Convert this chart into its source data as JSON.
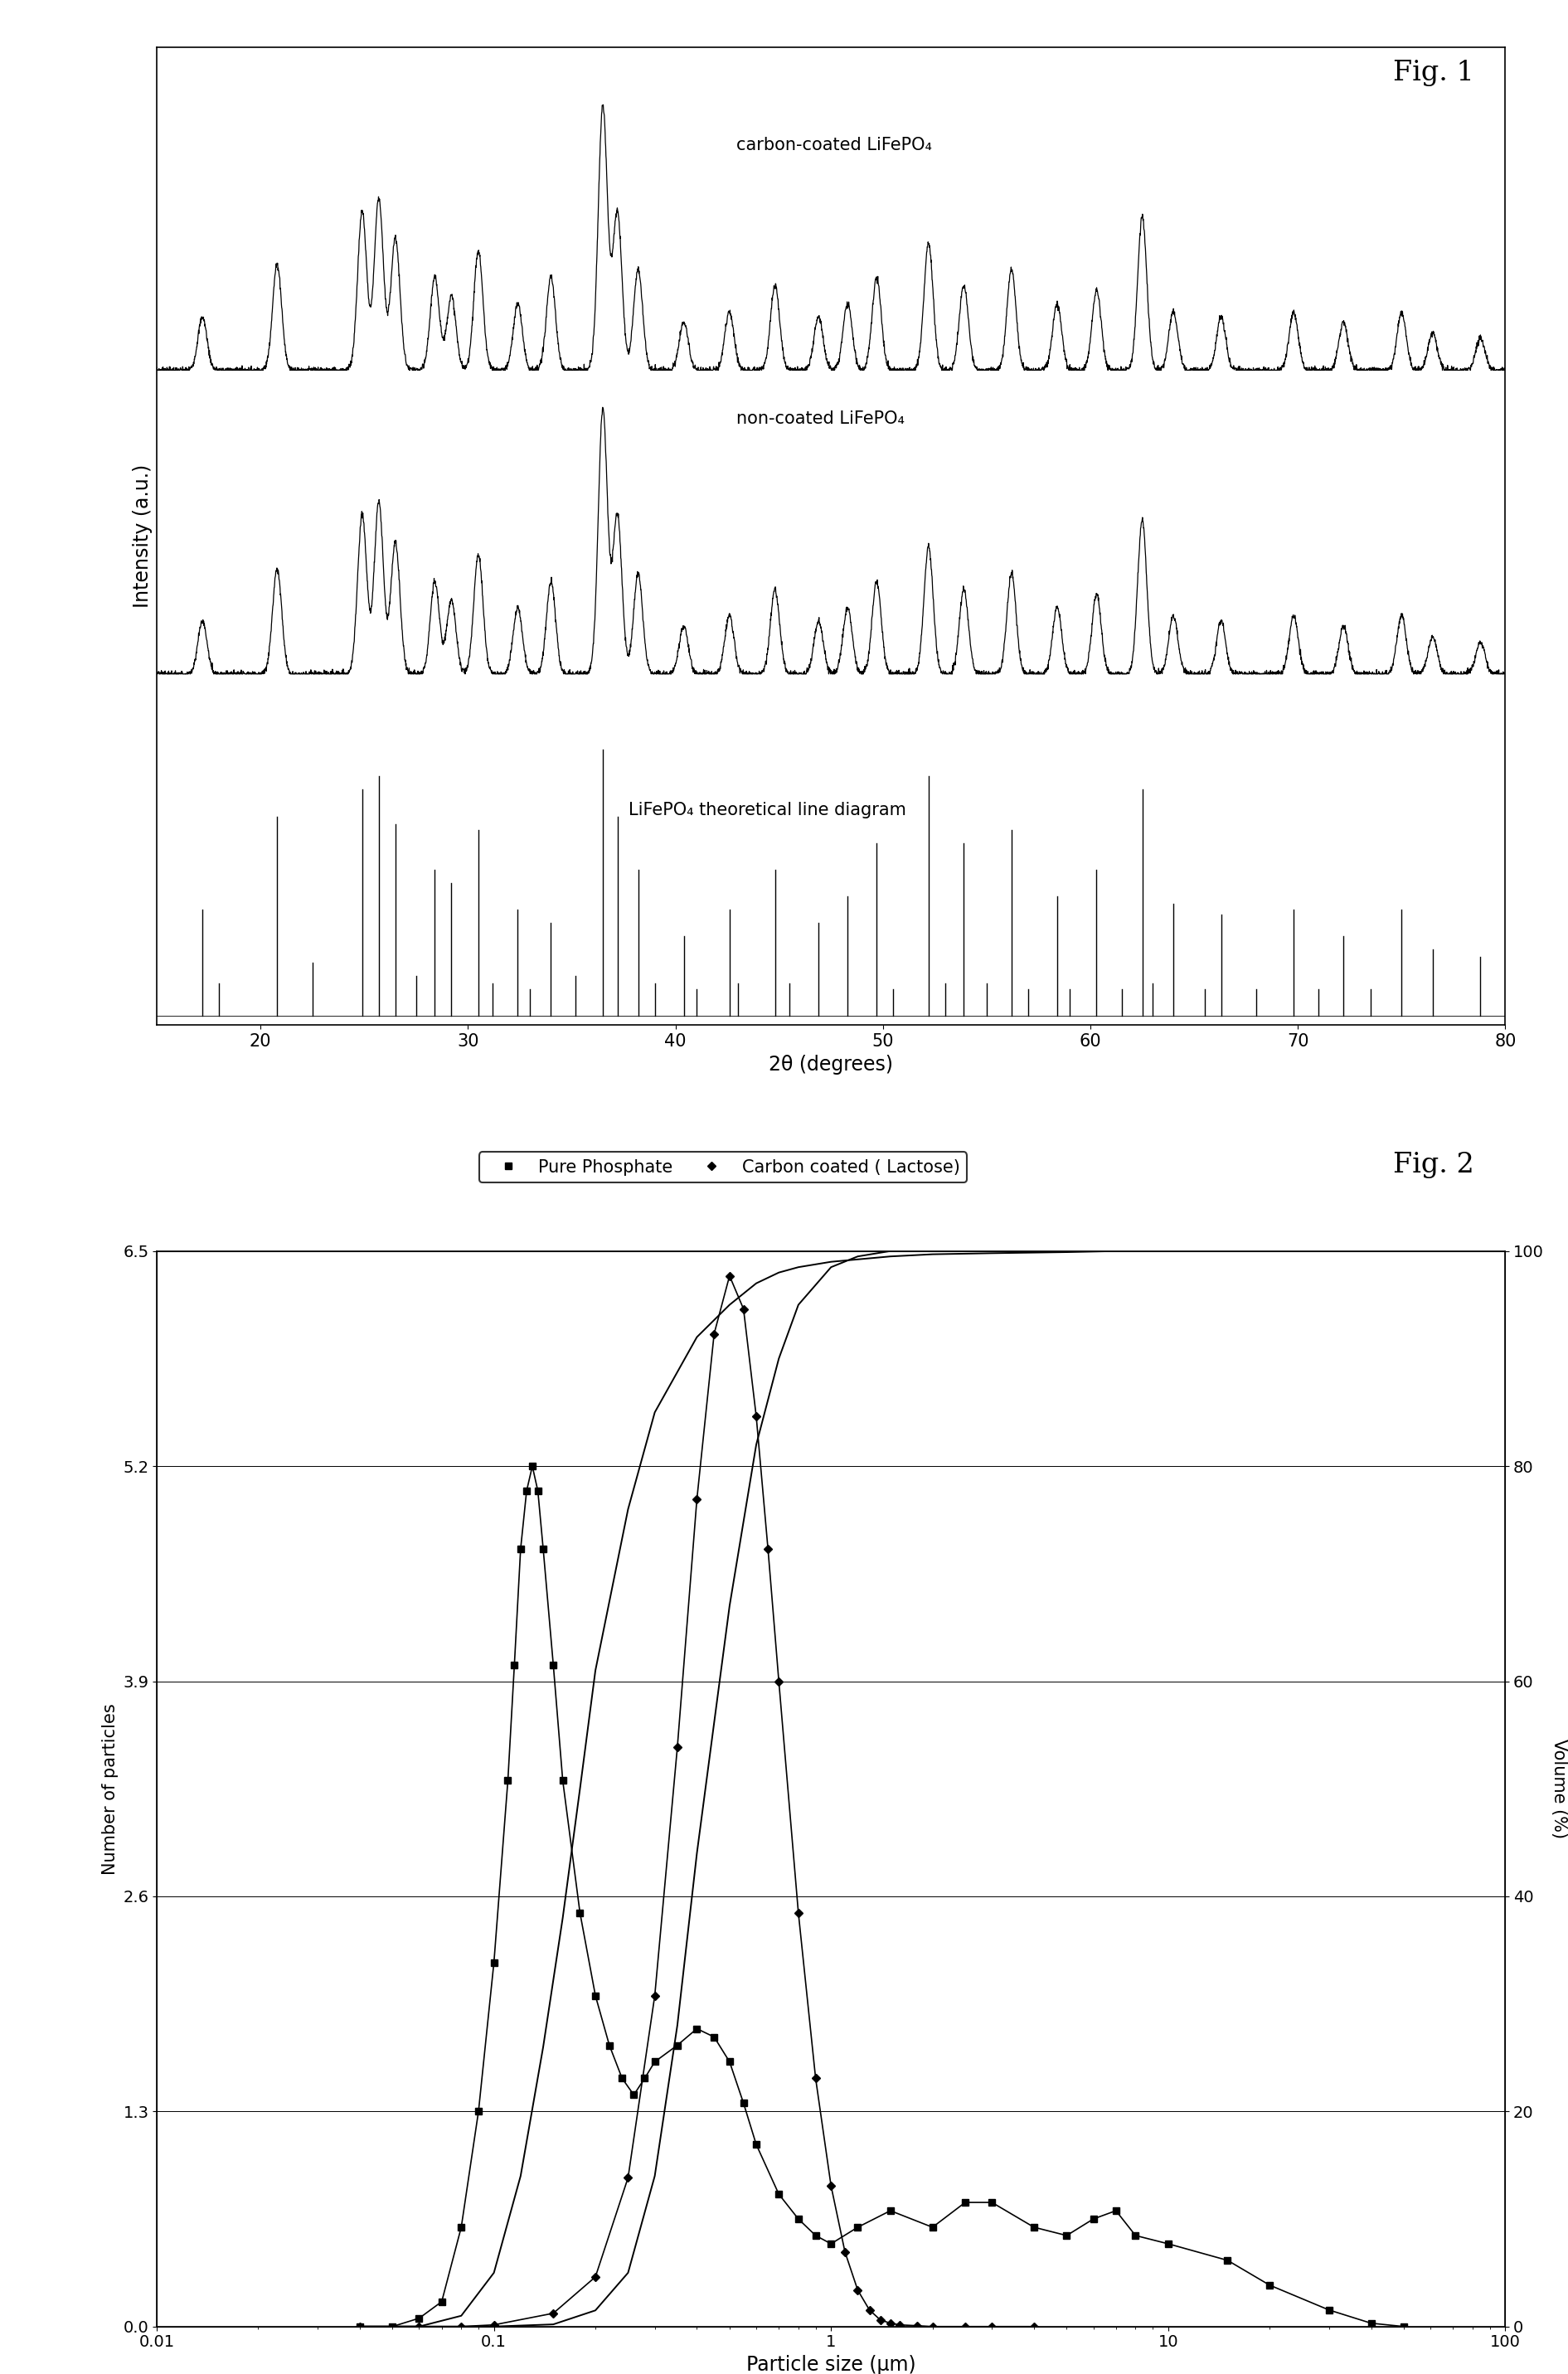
{
  "fig1": {
    "title": "Fig. 1",
    "xlabel": "2θ (degrees)",
    "ylabel": "Intensity (a.u.)",
    "xmin": 15,
    "xmax": 80,
    "label_carbon": "carbon-coated LiFePO₄",
    "label_noncoated": "non-coated LiFePO₄",
    "label_theoretical": "LiFePO₄ theoretical line diagram",
    "xrd_peaks": [
      17.2,
      20.8,
      24.9,
      25.7,
      26.5,
      28.4,
      29.2,
      30.5,
      32.4,
      34.0,
      36.5,
      37.2,
      38.2,
      40.4,
      42.6,
      44.8,
      46.9,
      48.3,
      49.7,
      52.2,
      53.9,
      56.2,
      58.4,
      60.3,
      62.5,
      64.0,
      66.3,
      69.8,
      72.2,
      75.0,
      76.5,
      78.8
    ],
    "xrd_heights": [
      0.2,
      0.4,
      0.6,
      0.65,
      0.5,
      0.35,
      0.28,
      0.45,
      0.25,
      0.35,
      1.0,
      0.6,
      0.38,
      0.18,
      0.22,
      0.32,
      0.2,
      0.25,
      0.35,
      0.48,
      0.32,
      0.38,
      0.25,
      0.3,
      0.58,
      0.22,
      0.2,
      0.22,
      0.18,
      0.22,
      0.14,
      0.12
    ],
    "theoretical_lines": [
      17.2,
      18.0,
      20.8,
      22.5,
      24.9,
      25.7,
      26.5,
      27.5,
      28.4,
      29.2,
      30.5,
      31.2,
      32.4,
      33.0,
      34.0,
      35.2,
      36.5,
      37.2,
      38.2,
      39.0,
      40.4,
      41.0,
      42.6,
      43.0,
      44.8,
      45.5,
      46.9,
      48.3,
      49.7,
      50.5,
      52.2,
      53.0,
      53.9,
      55.0,
      56.2,
      57.0,
      58.4,
      59.0,
      60.3,
      61.5,
      62.5,
      63.0,
      64.0,
      65.5,
      66.3,
      68.0,
      69.8,
      71.0,
      72.2,
      73.5,
      75.0,
      76.5,
      78.8
    ],
    "theoretical_heights": [
      0.4,
      0.12,
      0.75,
      0.2,
      0.85,
      0.9,
      0.72,
      0.15,
      0.55,
      0.5,
      0.7,
      0.12,
      0.4,
      0.1,
      0.35,
      0.15,
      1.0,
      0.75,
      0.55,
      0.12,
      0.3,
      0.1,
      0.4,
      0.12,
      0.55,
      0.12,
      0.35,
      0.45,
      0.65,
      0.1,
      0.9,
      0.12,
      0.65,
      0.12,
      0.7,
      0.1,
      0.45,
      0.1,
      0.55,
      0.1,
      0.85,
      0.12,
      0.42,
      0.1,
      0.38,
      0.1,
      0.4,
      0.1,
      0.3,
      0.1,
      0.4,
      0.25,
      0.22
    ]
  },
  "fig2": {
    "title": "Fig. 2",
    "xlabel": "Particle size (μm)",
    "ylabel_left": "Number of particles",
    "ylabel_right": "Volume (%)",
    "legend_label1": "Pure Phosphate",
    "legend_label2": "Carbon coated ( Lactose)",
    "yticks_left": [
      0,
      1.3,
      2.6,
      3.9,
      5.2,
      6.5
    ],
    "yticks_right": [
      0,
      20,
      40,
      60,
      80,
      100
    ],
    "pure_phosphate_x": [
      0.04,
      0.05,
      0.06,
      0.07,
      0.08,
      0.09,
      0.1,
      0.11,
      0.115,
      0.12,
      0.125,
      0.13,
      0.135,
      0.14,
      0.15,
      0.16,
      0.18,
      0.2,
      0.22,
      0.24,
      0.26,
      0.28,
      0.3,
      0.35,
      0.4,
      0.45,
      0.5,
      0.55,
      0.6,
      0.7,
      0.8,
      0.9,
      1.0,
      1.2,
      1.5,
      2.0,
      2.5,
      3.0,
      4.0,
      5.0,
      6.0,
      7.0,
      8.0,
      10.0,
      15.0,
      20.0,
      30.0,
      40.0,
      50.0
    ],
    "pure_phosphate_y": [
      0.0,
      0.0,
      0.05,
      0.15,
      0.6,
      1.3,
      2.2,
      3.3,
      4.0,
      4.7,
      5.05,
      5.2,
      5.05,
      4.7,
      4.0,
      3.3,
      2.5,
      2.0,
      1.7,
      1.5,
      1.4,
      1.5,
      1.6,
      1.7,
      1.8,
      1.75,
      1.6,
      1.35,
      1.1,
      0.8,
      0.65,
      0.55,
      0.5,
      0.6,
      0.7,
      0.6,
      0.75,
      0.75,
      0.6,
      0.55,
      0.65,
      0.7,
      0.55,
      0.5,
      0.4,
      0.25,
      0.1,
      0.02,
      0.0
    ],
    "carbon_coated_x": [
      0.04,
      0.06,
      0.08,
      0.1,
      0.15,
      0.2,
      0.25,
      0.3,
      0.35,
      0.4,
      0.45,
      0.5,
      0.55,
      0.6,
      0.65,
      0.7,
      0.8,
      0.9,
      1.0,
      1.1,
      1.2,
      1.3,
      1.4,
      1.5,
      1.6,
      1.8,
      2.0,
      2.5,
      3.0,
      4.0
    ],
    "carbon_coated_y": [
      0.0,
      0.0,
      0.0,
      0.01,
      0.08,
      0.3,
      0.9,
      2.0,
      3.5,
      5.0,
      6.0,
      6.35,
      6.15,
      5.5,
      4.7,
      3.9,
      2.5,
      1.5,
      0.85,
      0.45,
      0.22,
      0.1,
      0.04,
      0.02,
      0.01,
      0.005,
      0.0,
      0.0,
      0.0,
      0.0
    ],
    "cumul_pure_x": [
      0.04,
      0.06,
      0.08,
      0.1,
      0.12,
      0.14,
      0.16,
      0.18,
      0.2,
      0.25,
      0.3,
      0.4,
      0.5,
      0.6,
      0.7,
      0.8,
      1.0,
      1.5,
      2.0,
      3.0,
      5.0,
      7.0,
      10.0,
      20.0,
      30.0,
      40.0,
      50.0,
      70.0,
      100.0
    ],
    "cumul_pure_y": [
      0,
      0,
      1,
      5,
      14,
      26,
      38,
      50,
      61,
      76,
      85,
      92,
      95,
      97,
      98,
      98.5,
      99,
      99.5,
      99.7,
      99.8,
      99.9,
      100,
      100,
      100,
      100,
      100,
      100,
      100,
      100
    ],
    "cumul_carbon_x": [
      0.04,
      0.1,
      0.15,
      0.2,
      0.25,
      0.3,
      0.35,
      0.4,
      0.5,
      0.6,
      0.7,
      0.8,
      1.0,
      1.2,
      1.5,
      2.0,
      3.0,
      5.0,
      7.0,
      10.0,
      20.0,
      30.0,
      50.0,
      70.0,
      100.0
    ],
    "cumul_carbon_y": [
      0,
      0,
      0.2,
      1.5,
      5,
      14,
      28,
      44,
      67,
      82,
      90,
      95,
      98.5,
      99.5,
      100,
      100,
      100,
      100,
      100,
      100,
      100,
      100,
      100,
      100,
      100
    ]
  }
}
